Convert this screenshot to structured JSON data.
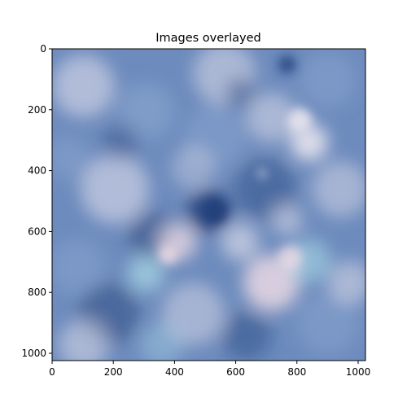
{
  "chart_data": {
    "type": "heatmap",
    "title": "Images overlayed",
    "xlabel": "",
    "ylabel": "",
    "xlim": [
      0,
      1024
    ],
    "ylim": [
      1024,
      0
    ],
    "x_ticks": [
      {
        "value": 0,
        "label": "0"
      },
      {
        "value": 200,
        "label": "200"
      },
      {
        "value": 400,
        "label": "400"
      },
      {
        "value": 600,
        "label": "600"
      },
      {
        "value": 800,
        "label": "800"
      },
      {
        "value": 1000,
        "label": "1000"
      }
    ],
    "y_ticks": [
      {
        "value": 0,
        "label": "0"
      },
      {
        "value": 200,
        "label": "200"
      },
      {
        "value": 400,
        "label": "400"
      },
      {
        "value": 600,
        "label": "600"
      },
      {
        "value": 800,
        "label": "800"
      },
      {
        "value": 1000,
        "label": "1000"
      }
    ],
    "grid": false,
    "colors": {
      "base": "#6d8bbd",
      "dark": "#1f3d78",
      "light": "#e8e4ee",
      "cyan": "#a9d8e6",
      "pink": "#f1dde6",
      "mid": "#8aa6cf"
    }
  }
}
